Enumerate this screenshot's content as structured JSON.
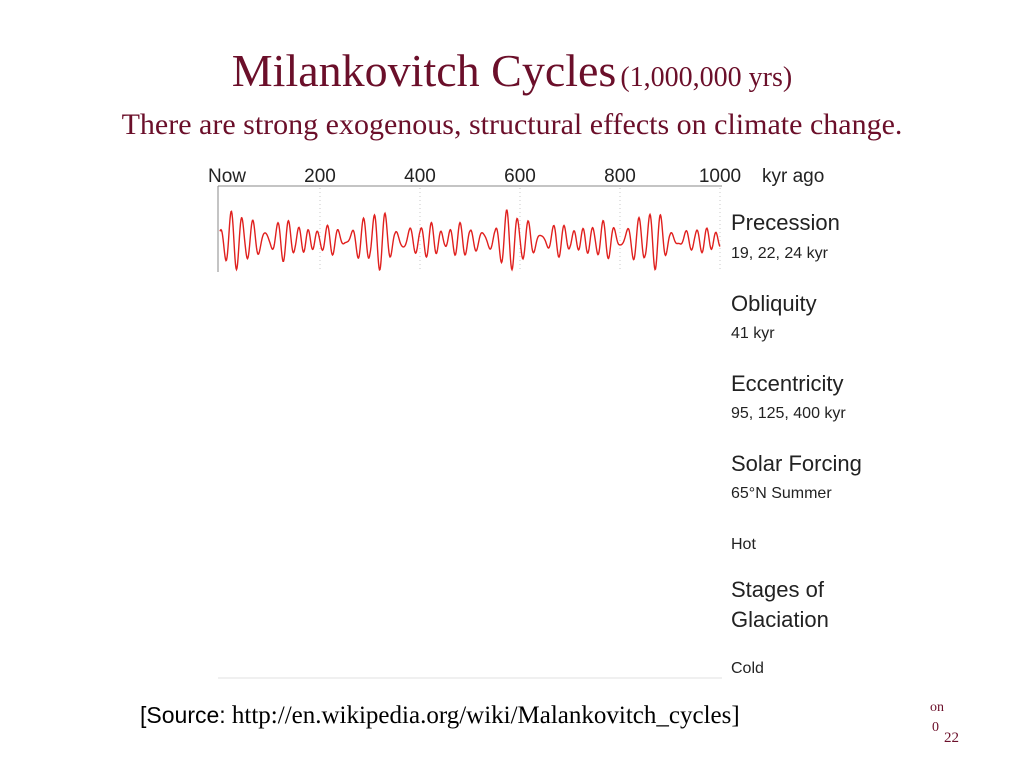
{
  "slide": {
    "title_main": "Milankovitch Cycles",
    "title_sub": "(1,000,000 yrs)",
    "subtitle": "There are strong exogenous, structural effects on climate change.",
    "source_prefix": "[Source:",
    "source_url": " http://en.wikipedia.org/wiki/Malankovitch_cycles]",
    "footer_frag_a": "on",
    "footer_frag_b": "0",
    "page_number": "22"
  },
  "chart_data": {
    "type": "line",
    "x_ticks": [
      "Now",
      "200",
      "400",
      "600",
      "800",
      "1000"
    ],
    "x_unit": "kyr ago",
    "xlim": [
      0,
      1000
    ],
    "series": [
      {
        "name": "Precession",
        "detail": "19, 22, 24 kyr",
        "color": "#e0201e",
        "visible": true,
        "periods_kyr": [
          19,
          22,
          24
        ]
      }
    ],
    "panel_labels": [
      {
        "name": "Obliquity",
        "detail": "41 kyr"
      },
      {
        "name": "Eccentricity",
        "detail": "95, 125, 400 kyr"
      },
      {
        "name": "Solar Forcing",
        "detail": "65°N Summer"
      },
      {
        "name": "",
        "detail": "Hot"
      },
      {
        "name": "Stages of",
        "name2": "Glaciation",
        "detail": ""
      },
      {
        "name": "",
        "detail": "Cold"
      }
    ]
  }
}
